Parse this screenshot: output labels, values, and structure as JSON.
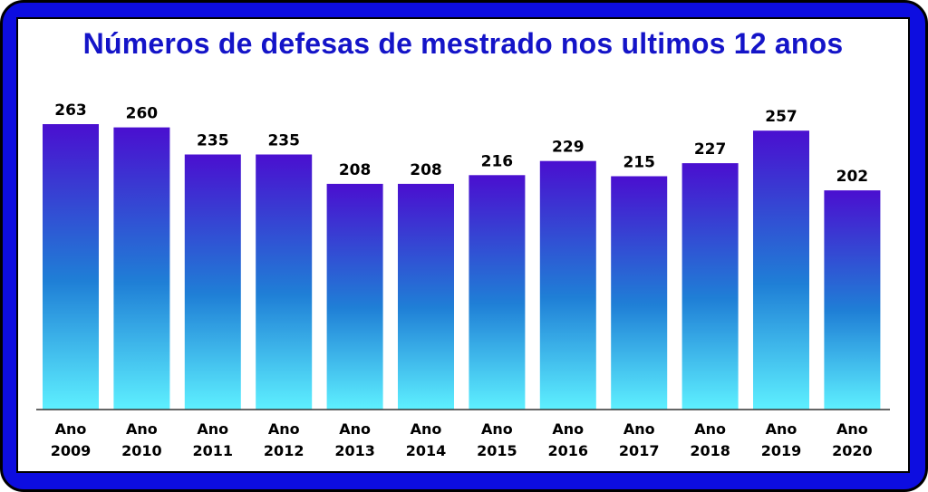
{
  "colors": {
    "frame": "#0d0de0",
    "title": "#1414c8",
    "bar_top": "#4a0fd0",
    "bar_mid": "#1f7fd6",
    "bar_bottom": "#5ef0ff",
    "axis": "#333333"
  },
  "chart_data": {
    "type": "bar",
    "title": "Números de defesas de mestrado nos ultimos 12 anos",
    "xlabel": "",
    "ylabel": "",
    "grid": false,
    "legend": "none",
    "ylim": [
      0,
      263
    ],
    "categories": [
      [
        "Ano",
        "2009"
      ],
      [
        "Ano",
        "2010"
      ],
      [
        "Ano",
        "2011"
      ],
      [
        "Ano",
        "2012"
      ],
      [
        "Ano",
        "2013"
      ],
      [
        "Ano",
        "2014"
      ],
      [
        "Ano",
        "2015"
      ],
      [
        "Ano",
        "2016"
      ],
      [
        "Ano",
        "2017"
      ],
      [
        "Ano",
        "2018"
      ],
      [
        "Ano",
        "2019"
      ],
      [
        "Ano",
        "2020"
      ]
    ],
    "values": [
      263,
      260,
      235,
      235,
      208,
      208,
      216,
      229,
      215,
      227,
      257,
      202
    ],
    "data_labels": [
      "263",
      "260",
      "235",
      "235",
      "208",
      "208",
      "216",
      "229",
      "215",
      "227",
      "257",
      "202"
    ]
  }
}
